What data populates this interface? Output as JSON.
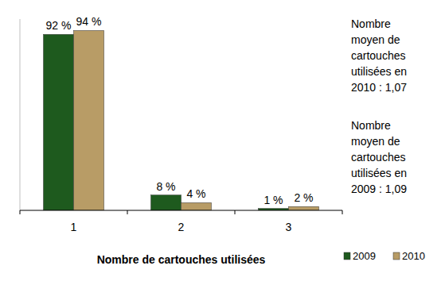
{
  "chart_data": {
    "type": "bar",
    "categories": [
      "1",
      "2",
      "3"
    ],
    "series": [
      {
        "name": "2009",
        "color": "#1e5a1e",
        "values": [
          92,
          8,
          1
        ],
        "value_labels": [
          "92 %",
          "8 %",
          "1 %"
        ]
      },
      {
        "name": "2010",
        "color": "#b89c66",
        "values": [
          94,
          4,
          2
        ],
        "value_labels": [
          "94 %",
          "4 %",
          "2 %"
        ]
      }
    ],
    "x_label": "Nombre de cartouches utilisées",
    "annotations": [
      "Nombre moyen de cartouches utilisées en 2010 : 1,07",
      "Nombre moyen de cartouches utilisées en 2009 : 1,09"
    ],
    "ylim": [
      0,
      100
    ],
    "data_labels": true,
    "tick_labels": "x",
    "grid": false,
    "legend": "bottom-right"
  }
}
